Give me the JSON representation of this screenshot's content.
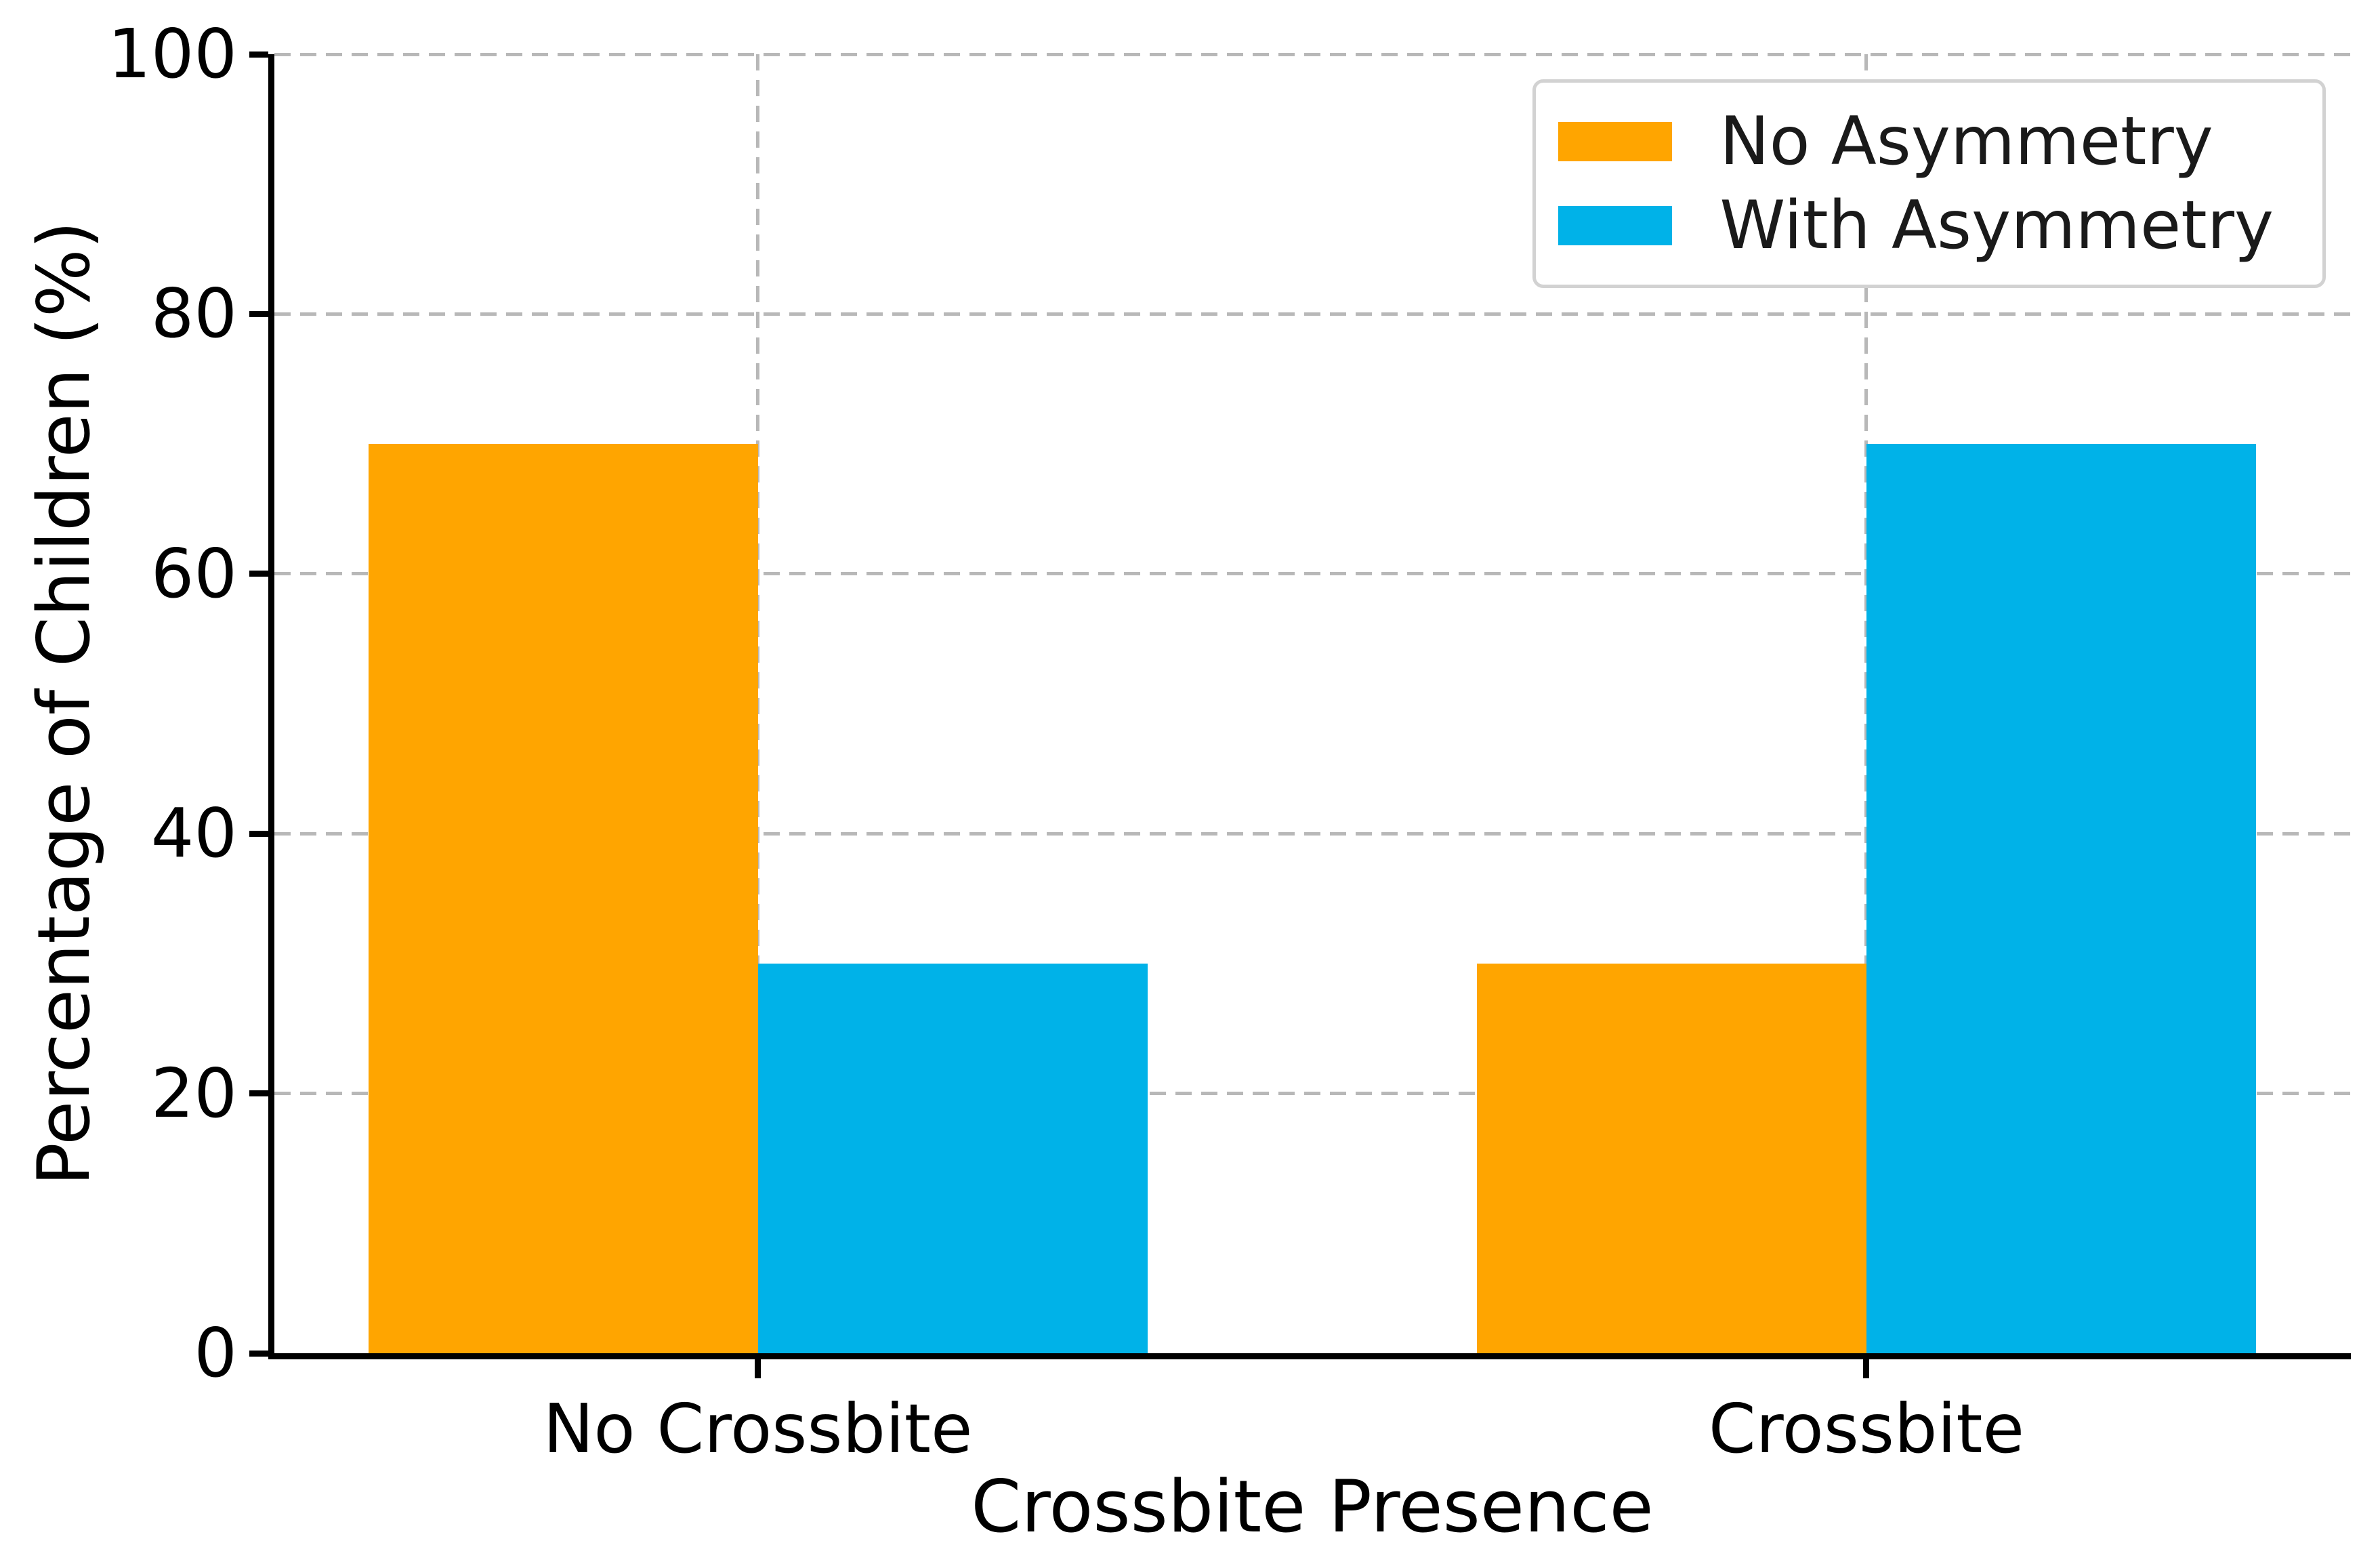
{
  "chart_data": {
    "type": "bar",
    "title": "",
    "categories": [
      "No Crossbite",
      "Crossbite"
    ],
    "series": [
      {
        "name": "No Asymmetry",
        "values": [
          70,
          30
        ],
        "color": "#FFA500"
      },
      {
        "name": "With Asymmetry",
        "values": [
          30,
          70
        ],
        "color": "#00B2E8"
      }
    ],
    "xlabel": "Crossbite Presence",
    "ylabel": "Percentage of Children (%)",
    "ylim": [
      0,
      100
    ],
    "yticks": [
      0,
      20,
      40,
      60,
      80,
      100
    ],
    "grid": true,
    "grid_style": "dashed",
    "legend_position": "upper right",
    "colors": {
      "grid": "#b8b8b8",
      "axis": "#000000",
      "legend_border": "#d2d2d2",
      "text": "#000000"
    }
  }
}
